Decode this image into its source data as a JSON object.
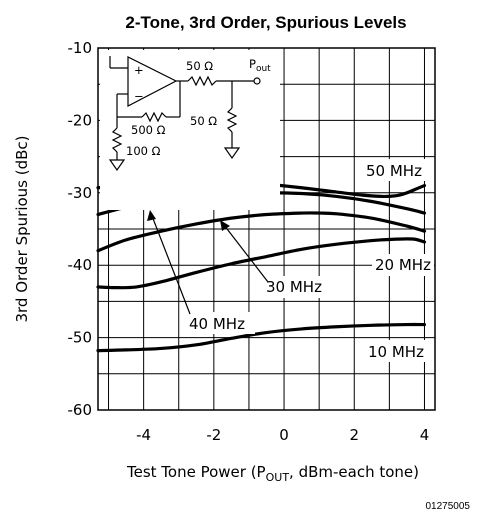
{
  "chart_data": {
    "type": "line",
    "title": "2-Tone, 3rd Order, Spurious Levels",
    "xlabel_prefix": "Test Tone Power (P",
    "xlabel_sub": "OUT",
    "xlabel_suffix": ", dBm-each tone)",
    "ylabel": "3rd Order Spurious (dBc)",
    "xlim": [
      -5.3,
      4.3
    ],
    "ylim": [
      -60,
      -10
    ],
    "x_ticks": [
      -4,
      -2,
      0,
      2,
      4
    ],
    "x_tick_labels": [
      "-4",
      "-2",
      "0",
      "2",
      "4"
    ],
    "y_ticks": [
      -60,
      -50,
      -40,
      -30,
      -20,
      -10
    ],
    "y_tick_labels": [
      "-60",
      "-50",
      "-40",
      "-30",
      "-20",
      "-10"
    ],
    "grid": true,
    "series": [
      {
        "name": "50 MHz",
        "x": [
          -5.3,
          -4.5,
          -3.5,
          -2.5,
          -1.5,
          -0.5,
          0.5,
          1.5,
          2.2,
          2.8,
          3.2,
          3.5,
          3.8,
          4.0
        ],
        "y": [
          -29.3,
          -29.0,
          -28.6,
          -28.3,
          -28.4,
          -28.8,
          -29.3,
          -29.9,
          -30.3,
          -30.5,
          -30.4,
          -30.0,
          -29.4,
          -29.0
        ]
      },
      {
        "name": "40 MHz",
        "x": [
          -5.3,
          -4.5,
          -3.5,
          -2.5,
          -1.5,
          -0.5,
          0.5,
          1.5,
          2.5,
          3.5,
          4.0
        ],
        "y": [
          -33.0,
          -32.0,
          -31.2,
          -30.6,
          -30.2,
          -30.0,
          -30.1,
          -30.5,
          -31.2,
          -32.2,
          -32.8
        ]
      },
      {
        "name": "30 MHz",
        "x": [
          -5.3,
          -4.5,
          -3.5,
          -2.5,
          -1.5,
          -0.5,
          0.5,
          1.0,
          1.5,
          2.5,
          3.5,
          4.0
        ],
        "y": [
          -38.0,
          -36.5,
          -35.3,
          -34.3,
          -33.5,
          -33.0,
          -32.8,
          -32.8,
          -32.9,
          -33.5,
          -34.6,
          -35.3
        ]
      },
      {
        "name": "20 MHz",
        "x": [
          -5.3,
          -4.8,
          -4.2,
          -3.5,
          -2.5,
          -1.5,
          -0.5,
          0.5,
          1.5,
          2.5,
          3.2,
          3.7,
          4.0
        ],
        "y": [
          -43.0,
          -43.1,
          -43.0,
          -42.3,
          -41.0,
          -39.8,
          -38.8,
          -37.8,
          -37.1,
          -36.6,
          -36.4,
          -36.4,
          -36.8
        ]
      },
      {
        "name": "10 MHz",
        "x": [
          -5.3,
          -4.5,
          -3.5,
          -2.5,
          -1.5,
          -0.5,
          0.5,
          1.5,
          2.5,
          3.5,
          4.0
        ],
        "y": [
          -51.8,
          -51.7,
          -51.5,
          -51.0,
          -50.1,
          -49.3,
          -48.8,
          -48.5,
          -48.3,
          -48.2,
          -48.2
        ]
      }
    ],
    "series_labels": [
      "50 MHz",
      "40 MHz",
      "30 MHz",
      "20 MHz",
      "10 MHz"
    ],
    "inset_schematic": {
      "labels": {
        "series_resistor": "50 Ω",
        "output_prefix": "P",
        "output_sub": "out",
        "load_resistor": "50 Ω",
        "feedback_resistor": "500 Ω",
        "gain_resistor": "100 Ω",
        "noninverting": "+",
        "inverting": "−"
      }
    },
    "figure_number": "01275005"
  }
}
